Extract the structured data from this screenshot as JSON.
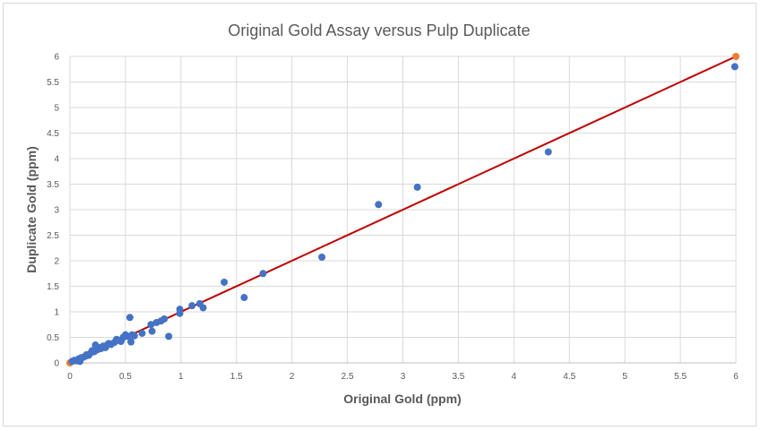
{
  "chart_data": {
    "type": "scatter",
    "title": "Original Gold Assay versus Pulp Duplicate",
    "xlabel": "Original Gold (ppm)",
    "ylabel": "Duplicate Gold (ppm)",
    "xlim": [
      0,
      6
    ],
    "ylim": [
      0,
      6
    ],
    "x_ticks": [
      "0",
      "0.5",
      "1",
      "1.5",
      "2",
      "2.5",
      "3",
      "3.5",
      "4",
      "4.5",
      "5",
      "5.5",
      "6"
    ],
    "y_ticks": [
      "0",
      "0.5",
      "1",
      "1.5",
      "2",
      "2.5",
      "3",
      "3.5",
      "4",
      "4.5",
      "5",
      "5.5",
      "6"
    ],
    "grid": true,
    "legend": "none",
    "colors": {
      "points": "#4472c4",
      "line": "#c00000",
      "endpoints": "#ed7d31"
    },
    "series": [
      {
        "values": [
          {
            "x": 0.02,
            "y": 0.03
          },
          {
            "x": 0.04,
            "y": 0.05
          },
          {
            "x": 0.06,
            "y": 0.04
          },
          {
            "x": 0.08,
            "y": 0.08
          },
          {
            "x": 0.09,
            "y": 0.03
          },
          {
            "x": 0.1,
            "y": 0.1
          },
          {
            "x": 0.12,
            "y": 0.11
          },
          {
            "x": 0.14,
            "y": 0.13
          },
          {
            "x": 0.15,
            "y": 0.16
          },
          {
            "x": 0.17,
            "y": 0.15
          },
          {
            "x": 0.19,
            "y": 0.2
          },
          {
            "x": 0.2,
            "y": 0.24
          },
          {
            "x": 0.22,
            "y": 0.22
          },
          {
            "x": 0.23,
            "y": 0.35
          },
          {
            "x": 0.25,
            "y": 0.26
          },
          {
            "x": 0.27,
            "y": 0.3
          },
          {
            "x": 0.28,
            "y": 0.28
          },
          {
            "x": 0.3,
            "y": 0.33
          },
          {
            "x": 0.32,
            "y": 0.3
          },
          {
            "x": 0.34,
            "y": 0.36
          },
          {
            "x": 0.35,
            "y": 0.38
          },
          {
            "x": 0.37,
            "y": 0.36
          },
          {
            "x": 0.4,
            "y": 0.4
          },
          {
            "x": 0.42,
            "y": 0.46
          },
          {
            "x": 0.44,
            "y": 0.44
          },
          {
            "x": 0.46,
            "y": 0.42
          },
          {
            "x": 0.48,
            "y": 0.5
          },
          {
            "x": 0.5,
            "y": 0.55
          },
          {
            "x": 0.52,
            "y": 0.52
          },
          {
            "x": 0.54,
            "y": 0.89
          },
          {
            "x": 0.55,
            "y": 0.41
          },
          {
            "x": 0.56,
            "y": 0.55
          },
          {
            "x": 0.58,
            "y": 0.53
          },
          {
            "x": 0.65,
            "y": 0.58
          },
          {
            "x": 0.73,
            "y": 0.75
          },
          {
            "x": 0.74,
            "y": 0.62
          },
          {
            "x": 0.78,
            "y": 0.79
          },
          {
            "x": 0.82,
            "y": 0.82
          },
          {
            "x": 0.85,
            "y": 0.86
          },
          {
            "x": 0.89,
            "y": 0.52
          },
          {
            "x": 0.99,
            "y": 0.97
          },
          {
            "x": 0.99,
            "y": 1.05
          },
          {
            "x": 1.1,
            "y": 1.12
          },
          {
            "x": 1.17,
            "y": 1.16
          },
          {
            "x": 1.2,
            "y": 1.08
          },
          {
            "x": 1.39,
            "y": 1.58
          },
          {
            "x": 1.57,
            "y": 1.28
          },
          {
            "x": 1.74,
            "y": 1.75
          },
          {
            "x": 2.27,
            "y": 2.07
          },
          {
            "x": 2.78,
            "y": 3.1
          },
          {
            "x": 3.13,
            "y": 3.44
          },
          {
            "x": 4.31,
            "y": 4.13
          },
          {
            "x": 5.99,
            "y": 5.8
          }
        ]
      },
      {
        "type": "line",
        "values": [
          {
            "x": 0,
            "y": 0
          },
          {
            "x": 6,
            "y": 6
          }
        ]
      }
    ]
  }
}
